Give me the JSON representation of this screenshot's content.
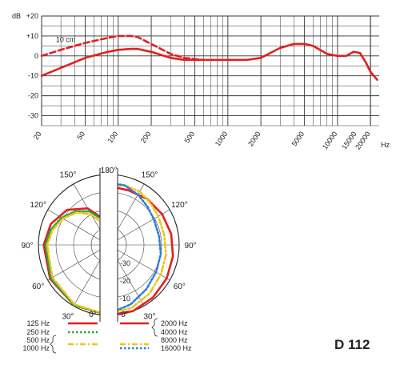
{
  "model": "D 112",
  "chart_data": [
    {
      "type": "line",
      "name": "frequency-response",
      "y_unit": "dB",
      "y_top_label": "+20",
      "yticks": [
        "+10",
        "0",
        "-10",
        "-20",
        "-30"
      ],
      "ylim": [
        -35,
        20
      ],
      "x_scale": "log",
      "xlim": [
        20,
        24000
      ],
      "xticks": [
        "20",
        "50",
        "100",
        "200",
        "500",
        "1000",
        "2000",
        "5000",
        "10000",
        "15000",
        "20000"
      ],
      "x_unit": "Hz",
      "annotation": "10 cm",
      "grid": true,
      "series": [
        {
          "style": "solid",
          "color": "#e02020",
          "x": [
            20,
            30,
            50,
            80,
            100,
            130,
            150,
            200,
            300,
            400,
            600,
            1000,
            1500,
            2000,
            3000,
            4000,
            5000,
            6000,
            8000,
            10000,
            12000,
            14000,
            16000,
            18000,
            20000,
            23000
          ],
          "y": [
            -10,
            -6,
            -1,
            2,
            3,
            3.5,
            3.5,
            2,
            -1,
            -2,
            -2,
            -2,
            -2,
            -1,
            4,
            6,
            6,
            5,
            1,
            0,
            0,
            2,
            1.5,
            -3,
            -8,
            -12
          ]
        },
        {
          "style": "dashed",
          "color": "#e02020",
          "x": [
            20,
            30,
            50,
            80,
            100,
            130,
            150,
            200,
            300,
            400,
            600
          ],
          "y": [
            0,
            3,
            6.5,
            9,
            10,
            10,
            9.5,
            6,
            1,
            -1,
            -2
          ]
        }
      ]
    },
    {
      "type": "polar",
      "name": "polar-pattern",
      "angle_labels": [
        "180°",
        "150°",
        "120°",
        "90°",
        "60°",
        "30°",
        "0°"
      ],
      "angle_label_values": [
        180,
        150,
        120,
        90,
        60,
        30,
        0
      ],
      "radial_labels": [
        "-10",
        "-20",
        "-30"
      ],
      "radial_label_values": [
        -10,
        -20,
        -30
      ],
      "r_range_db": [
        -40,
        0
      ],
      "left_series": [
        {
          "label": "125 Hz",
          "style": "solid",
          "color": "#e02020",
          "angles": [
            0,
            30,
            60,
            90,
            110,
            130,
            150,
            165
          ],
          "db": [
            0,
            -0.5,
            -1.5,
            -3,
            -5,
            -9,
            -16,
            -24
          ]
        },
        {
          "label": "250 Hz",
          "style": "dotted",
          "color": "#22a845",
          "angles": [
            0,
            30,
            60,
            90,
            105,
            120,
            135,
            150,
            162
          ],
          "db": [
            0,
            -0.5,
            -2,
            -4,
            -6,
            -9,
            -13,
            -18,
            -24
          ]
        },
        {
          "labels": [
            "500 Hz",
            "1000 Hz"
          ],
          "style": "dashdot",
          "color": "#f0c419",
          "angles": [
            0,
            30,
            60,
            90,
            105,
            120,
            135,
            150,
            160
          ],
          "db": [
            0,
            -1,
            -3,
            -5,
            -7,
            -10,
            -14,
            -20,
            -26
          ]
        }
      ],
      "right_series": [
        {
          "labels": [
            "2000 Hz",
            "4000 Hz"
          ],
          "style": "solid",
          "color": "#e02020",
          "angles": [
            0,
            20,
            40,
            60,
            80,
            100,
            120,
            140,
            160,
            175
          ],
          "db": [
            0,
            0,
            -1,
            -2,
            -3,
            -4,
            -5,
            -6,
            -7,
            -7
          ]
        },
        {
          "label": "8000 Hz",
          "style": "dashdot",
          "color": "#f0c419",
          "angles": [
            0,
            20,
            40,
            60,
            80,
            100,
            120,
            135,
            150,
            165,
            175
          ],
          "db": [
            -1,
            -2,
            -4,
            -6,
            -7,
            -8,
            -7.5,
            -6.5,
            -5,
            -5,
            -6
          ]
        },
        {
          "label": "16000 Hz",
          "style": "dotted",
          "color": "#2a7fd4",
          "angles": [
            0,
            20,
            40,
            60,
            80,
            100,
            120,
            135,
            150,
            165,
            175
          ],
          "db": [
            -1,
            -4,
            -7,
            -9,
            -10,
            -11,
            -10.5,
            -9,
            -7,
            -5,
            -5
          ]
        }
      ]
    }
  ],
  "legend": {
    "left": [
      {
        "label": "125 Hz",
        "style": "solid",
        "color": "#e02020"
      },
      {
        "label": "250 Hz",
        "style": "dotted",
        "color": "#22a845"
      },
      {
        "label": "500 Hz",
        "style": "dashdot",
        "color": "#f0c419"
      },
      {
        "label": "1000 Hz",
        "style": "none",
        "color": "#f0c419"
      }
    ],
    "right": [
      {
        "label": "2000 Hz",
        "style": "solid",
        "color": "#e02020"
      },
      {
        "label": "4000 Hz",
        "style": "none",
        "color": "#e02020"
      },
      {
        "label": "8000 Hz",
        "style": "dashdot",
        "color": "#f0c419"
      },
      {
        "label": "16000 Hz",
        "style": "dotted",
        "color": "#2a7fd4"
      }
    ]
  }
}
